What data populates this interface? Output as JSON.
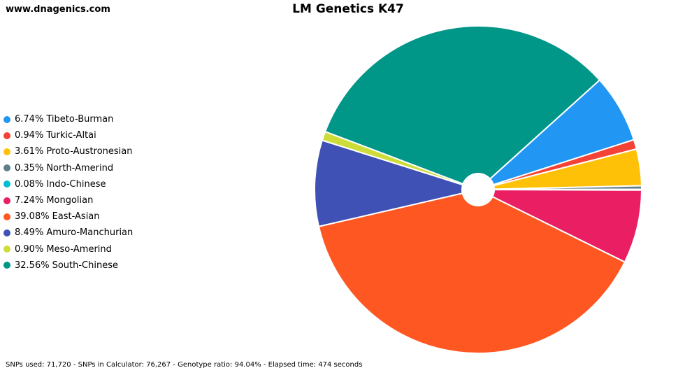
{
  "header": {
    "site": "www.dnagenics.com"
  },
  "footer": {
    "stats": "SNPs used: 71,720 - SNPs in Calculator: 76,267 - Genotype ratio: 94.04% - Elapsed time: 474 seconds"
  },
  "chart_data": {
    "type": "pie",
    "title": "LM Genetics K47",
    "legend_position": "left",
    "slices": [
      {
        "label": "Tibeto-Burman",
        "pct_label": "6.74%",
        "value": 6.74,
        "color": "#2196F3"
      },
      {
        "label": "Turkic-Altai",
        "pct_label": "0.94%",
        "value": 0.94,
        "color": "#F44336"
      },
      {
        "label": "Proto-Austronesian",
        "pct_label": "3.61%",
        "value": 3.61,
        "color": "#FFC107"
      },
      {
        "label": "North-Amerind",
        "pct_label": "0.35%",
        "value": 0.35,
        "color": "#607D8B"
      },
      {
        "label": "Indo-Chinese",
        "pct_label": "0.08%",
        "value": 0.08,
        "color": "#00BCD4"
      },
      {
        "label": "Mongolian",
        "pct_label": "7.24%",
        "value": 7.24,
        "color": "#E91E63"
      },
      {
        "label": "East-Asian",
        "pct_label": "39.08%",
        "value": 39.08,
        "color": "#FF5722"
      },
      {
        "label": "Amuro-Manchurian",
        "pct_label": "8.49%",
        "value": 8.49,
        "color": "#3F51B5"
      },
      {
        "label": "Meso-Amerind",
        "pct_label": "0.90%",
        "value": 0.9,
        "color": "#CDDC39"
      },
      {
        "label": "South-Chinese",
        "pct_label": "32.56%",
        "value": 32.56,
        "color": "#009688"
      }
    ]
  }
}
